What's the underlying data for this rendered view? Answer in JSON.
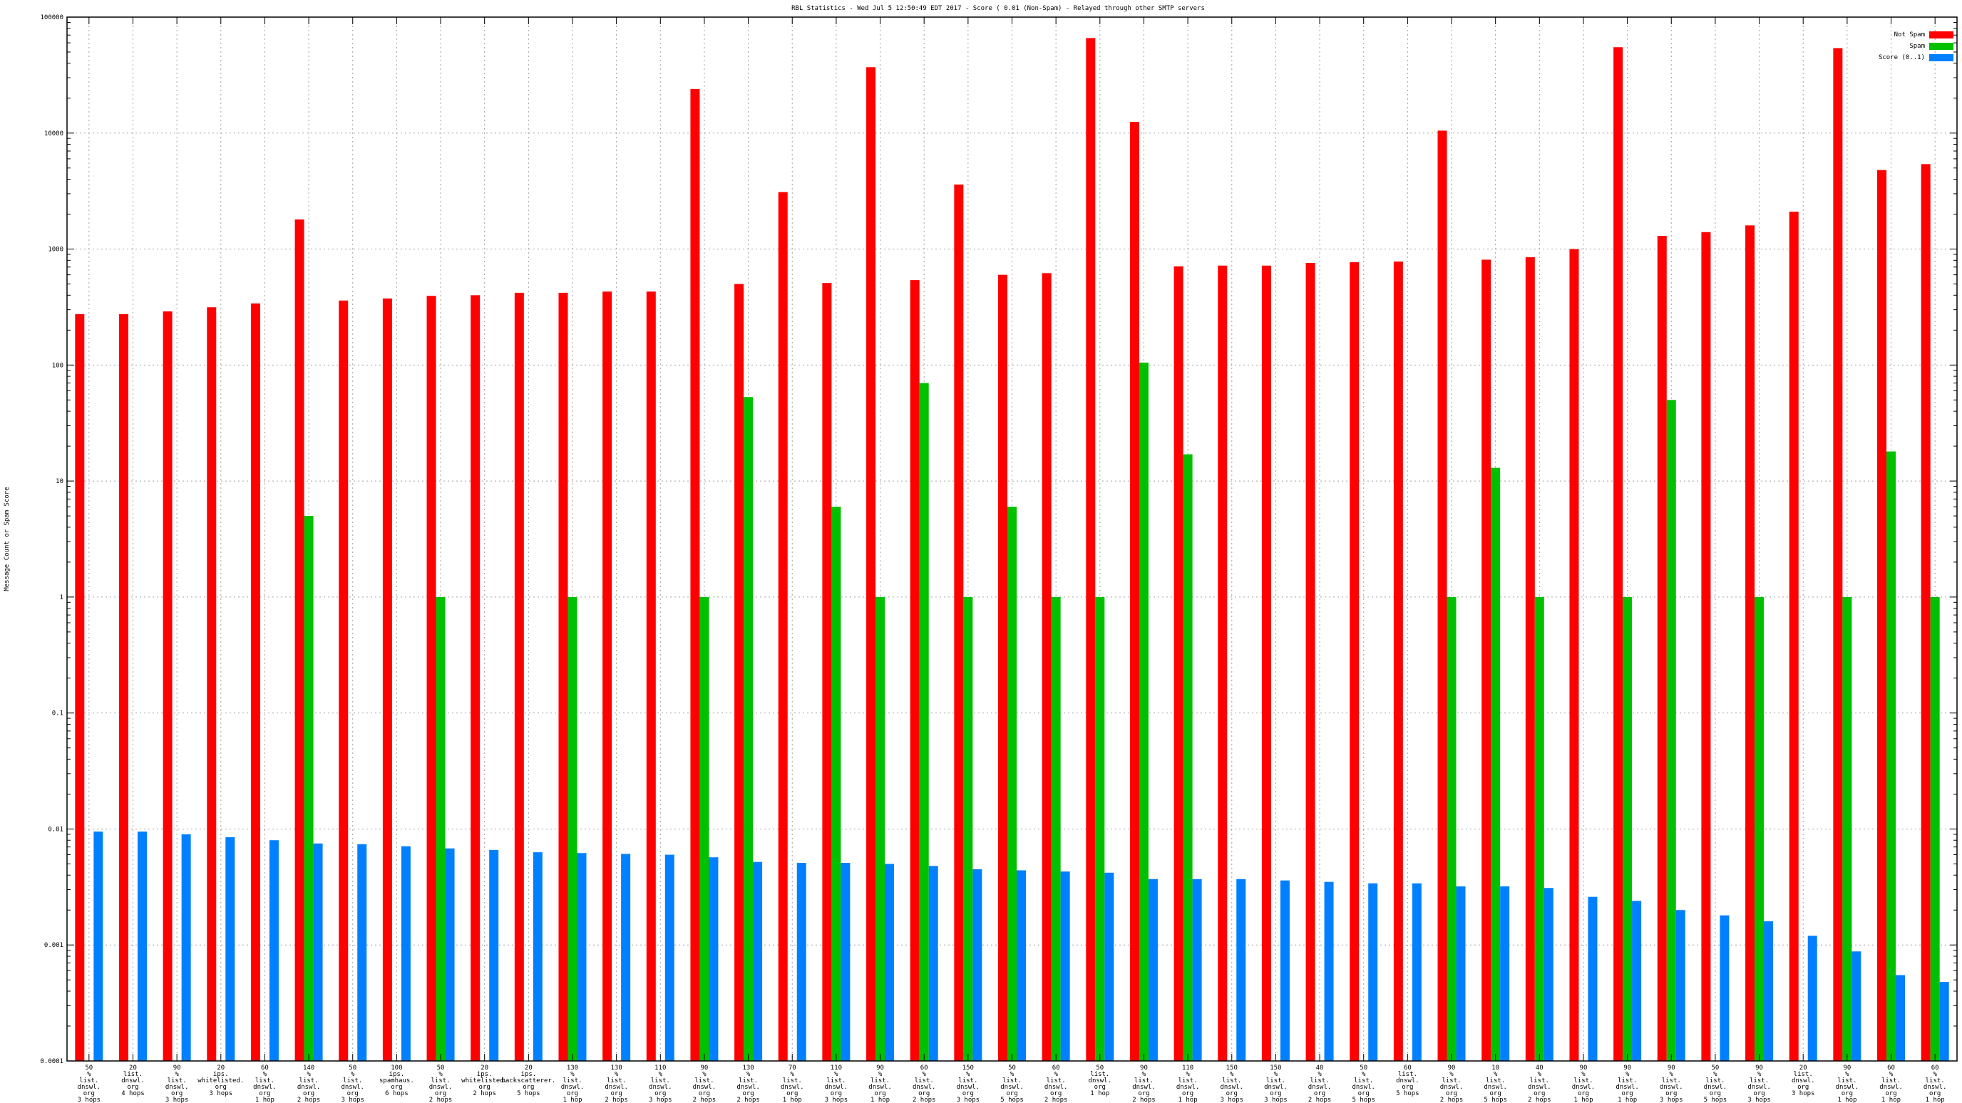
{
  "chart_data": {
    "type": "bar",
    "title": "RBL Statistics - Wed Jul  5 12:50:49 EDT 2017 - Score ( 0.01 (Non-Spam) - Relayed through other SMTP servers",
    "xlabel": "",
    "ylabel": "Message Count or Spam Score",
    "yscale": "log",
    "ylim": [
      0.0001,
      100000
    ],
    "yticks": [
      "100000",
      "10000",
      "1000",
      "100",
      "10",
      "1",
      "0.1",
      "0.01",
      "0.001",
      "0.0001"
    ],
    "grid": true,
    "legend_position": "top-right",
    "colors": {
      "not_spam": "#ff0000",
      "spam": "#00c000",
      "score": "#0080ff"
    },
    "categories": [
      [
        "50",
        "%",
        "list.",
        "dnswl.",
        "org",
        "3 hops"
      ],
      [
        "20",
        "list.",
        "dnswl.",
        "org",
        "4 hops"
      ],
      [
        "90",
        "%",
        "list.",
        "dnswl.",
        "org",
        "3 hops"
      ],
      [
        "20",
        "ips.",
        "whitelisted.",
        "org",
        "3 hops"
      ],
      [
        "60",
        "%",
        "list.",
        "dnswl.",
        "org",
        "1 hop"
      ],
      [
        "140",
        "%",
        "list.",
        "dnswl.",
        "org",
        "2 hops"
      ],
      [
        "50",
        "%",
        "list.",
        "dnswl.",
        "org",
        "3 hops"
      ],
      [
        "100",
        "ips.",
        "spamhaus.",
        "org",
        "6 hops"
      ],
      [
        "50",
        "%",
        "list.",
        "dnswl.",
        "org",
        "2 hops"
      ],
      [
        "20",
        "ips.",
        "whitelisted.",
        "org",
        "2 hops"
      ],
      [
        "20",
        "ips.",
        "backscatterer.",
        "org",
        "5 hops"
      ],
      [
        "130",
        "%",
        "list.",
        "dnswl.",
        "org",
        "1 hop"
      ],
      [
        "130",
        "%",
        "list.",
        "dnswl.",
        "org",
        "2 hops"
      ],
      [
        "110",
        "%",
        "list.",
        "dnswl.",
        "org",
        "3 hops"
      ],
      [
        "90",
        "%",
        "list.",
        "dnswl.",
        "org",
        "2 hops"
      ],
      [
        "130",
        "%",
        "list.",
        "dnswl.",
        "org",
        "2 hops"
      ],
      [
        "70",
        "%",
        "list.",
        "dnswl.",
        "org",
        "1 hop"
      ],
      [
        "110",
        "%",
        "list.",
        "dnswl.",
        "org",
        "3 hops"
      ],
      [
        "90",
        "%",
        "list.",
        "dnswl.",
        "org",
        "1 hop"
      ],
      [
        "60",
        "%",
        "list.",
        "dnswl.",
        "org",
        "2 hops"
      ],
      [
        "150",
        "%",
        "list.",
        "dnswl.",
        "org",
        "3 hops"
      ],
      [
        "50",
        "%",
        "list.",
        "dnswl.",
        "org",
        "5 hops"
      ],
      [
        "60",
        "%",
        "list.",
        "dnswl.",
        "org",
        "2 hops"
      ],
      [
        "50",
        "list.",
        "dnswl.",
        "org",
        "1 hop"
      ],
      [
        "90",
        "%",
        "list.",
        "dnswl.",
        "org",
        "2 hops"
      ],
      [
        "110",
        "%",
        "list.",
        "dnswl.",
        "org",
        "1 hop"
      ],
      [
        "150",
        "%",
        "list.",
        "dnswl.",
        "org",
        "3 hops"
      ],
      [
        "150",
        "%",
        "list.",
        "dnswl.",
        "org",
        "3 hops"
      ],
      [
        "40",
        "%",
        "list.",
        "dnswl.",
        "org",
        "2 hops"
      ],
      [
        "50",
        "%",
        "list.",
        "dnswl.",
        "org",
        "5 hops"
      ],
      [
        "60",
        "list.",
        "dnswl.",
        "org",
        "5 hops"
      ],
      [
        "90",
        "%",
        "list.",
        "dnswl.",
        "org",
        "2 hops"
      ],
      [
        "10",
        "%",
        "list.",
        "dnswl.",
        "org",
        "5 hops"
      ],
      [
        "40",
        "%",
        "list.",
        "dnswl.",
        "org",
        "2 hops"
      ],
      [
        "90",
        "%",
        "list.",
        "dnswl.",
        "org",
        "1 hop"
      ],
      [
        "90",
        "%",
        "list.",
        "dnswl.",
        "org",
        "1 hop"
      ],
      [
        "90",
        "%",
        "list.",
        "dnswl.",
        "org",
        "3 hops"
      ],
      [
        "50",
        "%",
        "list.",
        "dnswl.",
        "org",
        "5 hops"
      ],
      [
        "90",
        "%",
        "list.",
        "dnswl.",
        "org",
        "3 hops"
      ],
      [
        "20",
        "list.",
        "dnswl.",
        "org",
        "3 hops"
      ],
      [
        "90",
        "%",
        "list.",
        "dnswl.",
        "org",
        "1 hop"
      ],
      [
        "60",
        "%",
        "list.",
        "dnswl.",
        "org",
        "1 hop"
      ],
      [
        "60",
        "%",
        "list.",
        "dnswl.",
        "org",
        "1 hop"
      ]
    ],
    "series": [
      {
        "name": "Not Spam",
        "values": [
          275,
          275,
          290,
          315,
          340,
          1800,
          360,
          375,
          395,
          400,
          420,
          420,
          430,
          430,
          24000,
          500,
          3100,
          510,
          37000,
          540,
          3600,
          600,
          620,
          66000,
          12500,
          710,
          720,
          720,
          760,
          770,
          780,
          10500,
          810,
          850,
          1000,
          55000,
          1300,
          1400,
          1600,
          2100,
          54000,
          4800,
          5400
        ]
      },
      {
        "name": "Spam",
        "values": [
          null,
          null,
          null,
          null,
          null,
          5,
          null,
          null,
          1,
          null,
          null,
          1,
          null,
          null,
          1,
          53,
          null,
          6,
          1,
          70,
          1,
          6,
          1,
          1,
          105,
          17,
          null,
          null,
          null,
          null,
          null,
          1,
          13,
          1,
          null,
          1,
          50,
          null,
          1,
          null,
          1,
          18,
          1
        ]
      },
      {
        "name": "Score (0..1)",
        "values": [
          0.0095,
          0.0095,
          0.009,
          0.0085,
          0.008,
          0.0075,
          0.0074,
          0.0071,
          0.0068,
          0.0066,
          0.0063,
          0.0062,
          0.0061,
          0.006,
          0.0057,
          0.0052,
          0.0051,
          0.0051,
          0.005,
          0.0048,
          0.0045,
          0.0044,
          0.0043,
          0.0042,
          0.0037,
          0.0037,
          0.0037,
          0.0036,
          0.0035,
          0.0034,
          0.0034,
          0.0032,
          0.0032,
          0.0031,
          0.0026,
          0.0024,
          0.002,
          0.0018,
          0.0016,
          0.0012,
          0.00088,
          0.00055,
          0.00048
        ]
      }
    ]
  }
}
